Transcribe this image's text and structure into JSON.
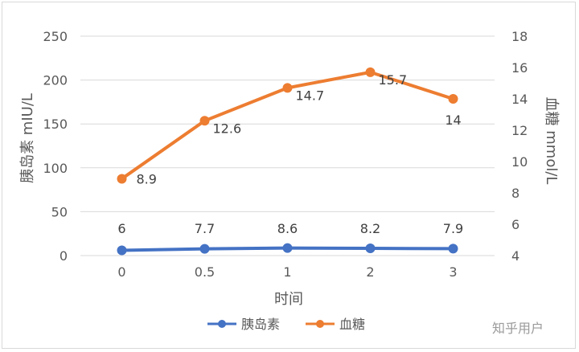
{
  "chart_data": {
    "type": "line",
    "xlabel": "时间",
    "ylabel_left": "胰岛素 mIU/L",
    "ylabel_right": "血糖 mmol/L",
    "categories": [
      "0",
      "0.5",
      "1",
      "2",
      "3"
    ],
    "ylim_left": [
      0,
      250
    ],
    "yticks_left": [
      0,
      50,
      100,
      150,
      200,
      250
    ],
    "ylim_right": [
      4,
      18
    ],
    "yticks_right": [
      4,
      6,
      8,
      10,
      12,
      14,
      16,
      18
    ],
    "grid": true,
    "legend_position": "bottom",
    "series": [
      {
        "name": "胰岛素",
        "axis": "left",
        "color": "#4472C4",
        "values": [
          6,
          7.7,
          8.6,
          8.2,
          7.9
        ],
        "labels": [
          "6",
          "7.7",
          "8.6",
          "8.2",
          "7.9"
        ]
      },
      {
        "name": "血糖",
        "axis": "right",
        "color": "#ED7D31",
        "values": [
          8.9,
          12.6,
          14.7,
          15.7,
          14
        ],
        "labels": [
          "8.9",
          "12.6",
          "14.7",
          "15.7",
          "14"
        ]
      }
    ]
  },
  "watermark": "知乎用户"
}
